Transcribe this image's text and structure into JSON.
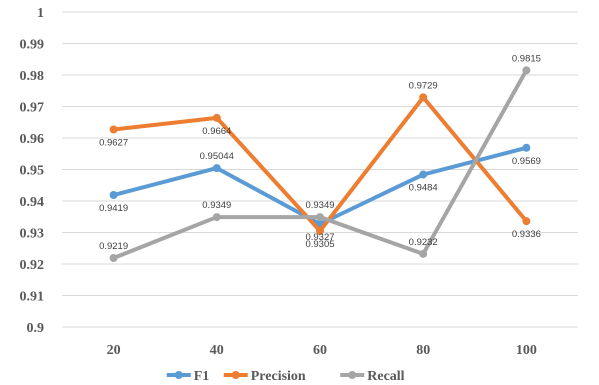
{
  "chart_data": {
    "type": "line",
    "title": "",
    "xlabel": "",
    "ylabel": "",
    "categories": [
      "20",
      "40",
      "60",
      "80",
      "100"
    ],
    "ylim": [
      0.9,
      1
    ],
    "yticks": [
      "0.9",
      "0.91",
      "0.92",
      "0.93",
      "0.94",
      "0.95",
      "0.96",
      "0.97",
      "0.98",
      "0.99",
      "1"
    ],
    "grid": true,
    "legend_position": "bottom",
    "series": [
      {
        "name": "F1",
        "color": "#5b9bd5",
        "values": [
          0.9419,
          0.95044,
          0.9327,
          0.9484,
          0.9569
        ],
        "labels": [
          "0.9419",
          "0.95044",
          "0.9327",
          "0.9484",
          "0.9569"
        ]
      },
      {
        "name": "Precision",
        "color": "#ed7d31",
        "values": [
          0.9627,
          0.9664,
          0.9305,
          0.9729,
          0.9336
        ],
        "labels": [
          "0.9627",
          "0.9664",
          "0.9305",
          "0.9729",
          "0.9336"
        ]
      },
      {
        "name": "Recall",
        "color": "#a5a5a5",
        "values": [
          0.9219,
          0.9349,
          0.9349,
          0.9232,
          0.9815
        ],
        "labels": [
          "0.9219",
          "0.9349",
          "0.9349",
          "0.9232",
          "0.9815"
        ]
      }
    ]
  }
}
